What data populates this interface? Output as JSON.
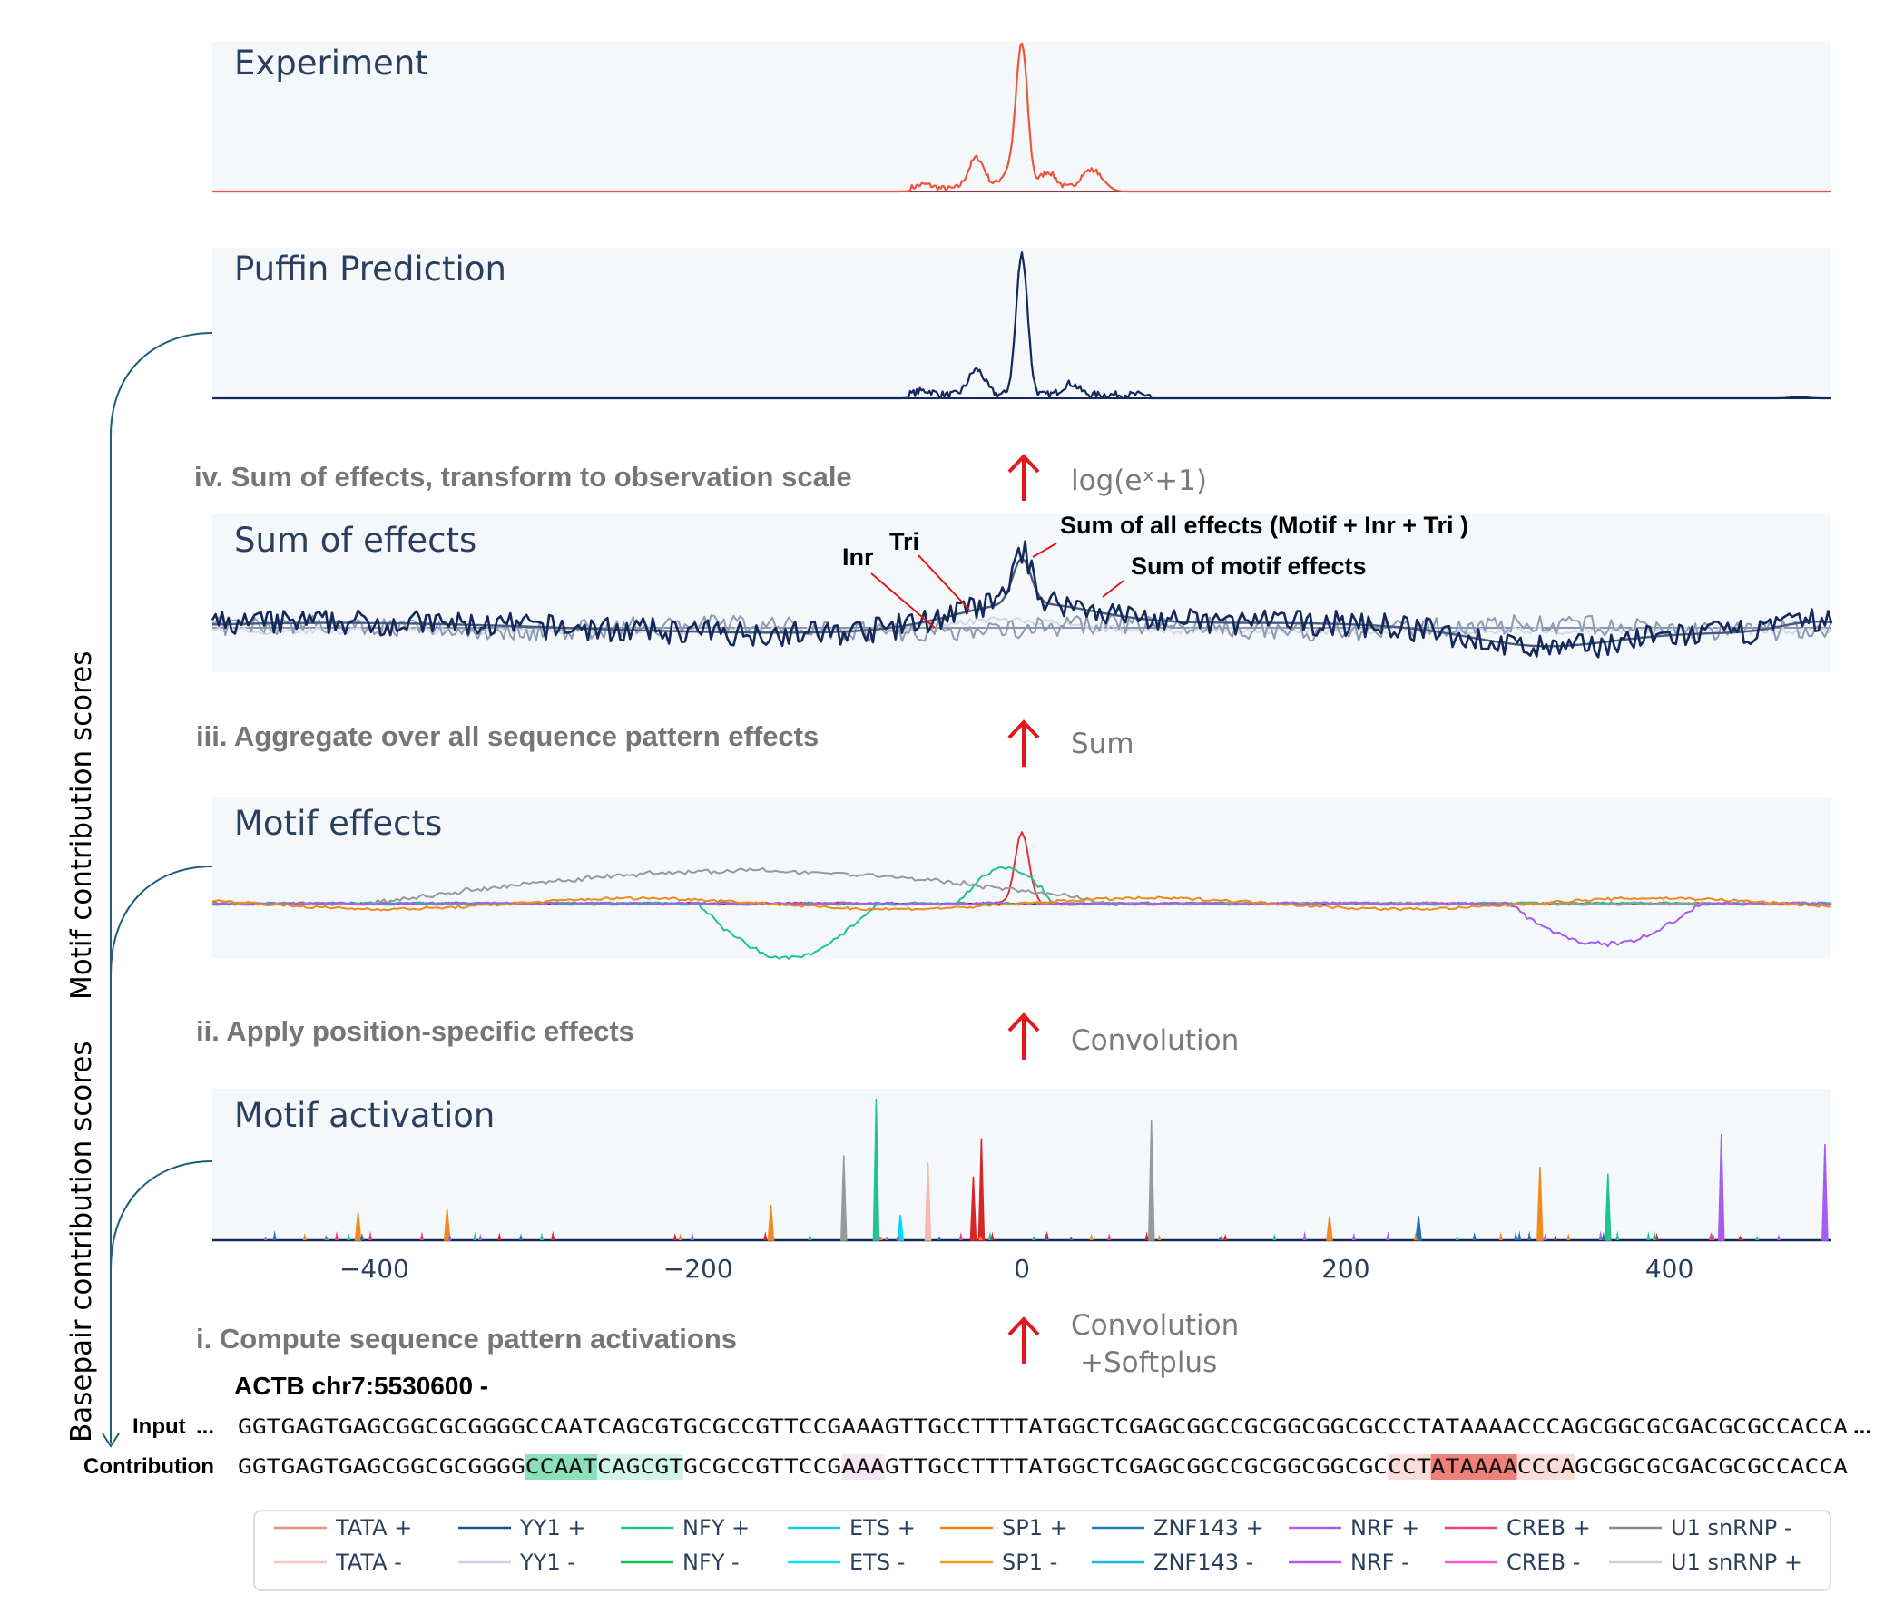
{
  "chart_data": [
    {
      "type": "line",
      "title": "Experiment",
      "xlim": [
        -500,
        500
      ],
      "x_ticks": [],
      "series": [
        {
          "color": "#ef553b",
          "peaks": [
            [
              0,
              100
            ],
            [
              -28,
              22
            ],
            [
              -60,
              3
            ],
            [
              40,
              10
            ],
            [
              48,
              8
            ],
            [
              16,
              12
            ],
            [
              -8,
              12
            ]
          ]
        }
      ]
    },
    {
      "type": "line",
      "title": "Puffin Prediction",
      "xlim": [
        -500,
        500
      ],
      "x_ticks": [],
      "series": [
        {
          "color": "#14295a",
          "peaks": [
            [
              0,
              100
            ],
            [
              -28,
              18
            ],
            [
              30,
              8
            ],
            [
              -60,
              3
            ],
            [
              480,
              1
            ]
          ]
        }
      ]
    },
    {
      "type": "line",
      "title": "Sum of effects",
      "xlim": [
        -500,
        500
      ],
      "x_ticks": [],
      "annotations": [
        "Sum of all effects (Motif + Inr + Tri )",
        "Sum of motif effects",
        "Inr",
        "Tri"
      ],
      "series": [
        {
          "label": "Sum of all effects",
          "color": "#14295a"
        },
        {
          "label": "Sum of motif effects",
          "color": "#4a5a7c"
        },
        {
          "label": "Inr",
          "color": "#8e9ab4"
        },
        {
          "label": "Tri",
          "color": "#d3d8e6"
        }
      ]
    },
    {
      "type": "line",
      "title": "Motif effects",
      "xlim": [
        -500,
        500
      ],
      "x_ticks": [],
      "series": [
        {
          "name": "TATA +",
          "color": "#e5303a",
          "peaks": [
            [
              0,
              80
            ]
          ]
        },
        {
          "name": "NFY +",
          "color": "#1fc48e",
          "segment": [
            -40,
            20,
            45
          ]
        },
        {
          "name": "NFY -",
          "color": "#1fc48e",
          "segment": [
            -200,
            -90,
            -60
          ]
        },
        {
          "name": "U1 snRNP -",
          "color": "#999999",
          "segment": [
            -400,
            60,
            40
          ]
        },
        {
          "name": "NRF -",
          "color": "#a65cf0",
          "segment": [
            300,
            420,
            -45
          ]
        },
        {
          "name": "SP1 +",
          "color": "#f18a1c"
        }
      ]
    },
    {
      "type": "bar",
      "title": "Motif activation",
      "xlim": [
        -500,
        500
      ],
      "x_ticks": [
        -400,
        -200,
        0,
        200,
        400
      ],
      "spikes": [
        [
          -90,
          100,
          "#1fc48e"
        ],
        [
          -110,
          60,
          "#999999"
        ],
        [
          80,
          85,
          "#999999"
        ],
        [
          -25,
          72,
          "#d62728"
        ],
        [
          -58,
          55,
          "#f4b9b2"
        ],
        [
          -155,
          25,
          "#f18a1c"
        ],
        [
          320,
          52,
          "#f18a1c"
        ],
        [
          362,
          47,
          "#1fc48e"
        ],
        [
          432,
          75,
          "#a65cf0"
        ],
        [
          496,
          68,
          "#a65cf0"
        ],
        [
          -30,
          45,
          "#d62728"
        ],
        [
          -410,
          20,
          "#f18a1c"
        ],
        [
          -355,
          22,
          "#f18a1c"
        ],
        [
          -75,
          18,
          "#00d9f2"
        ],
        [
          190,
          17,
          "#f18a1c"
        ],
        [
          245,
          17,
          "#1f6fb4"
        ]
      ]
    }
  ],
  "steps": {
    "iv": "iv. Sum of effects, transform to observation scale",
    "iii": "iii. Aggregate over all sequence pattern effects",
    "ii": "ii.  Apply position-specific effects",
    "i": "i.  Compute sequence pattern activations"
  },
  "ops": {
    "iv": "log(eˣ+1)",
    "iii": "Sum",
    "ii": "Convolution",
    "i_1": "Convolution",
    "i_2": "+Softplus"
  },
  "side_labels": {
    "motif": "Motif contribution scores",
    "basepair": "Basepair contribution scores"
  },
  "sequence": {
    "gene": "ACTB chr7:5530600 -",
    "input_label": "Input",
    "input_dots": "...",
    "contribution_label": "Contribution",
    "seq": "GGTGAGTGAGCGGCGCGGGGCCAATCAGCGTGCGCCGTTCCGAAAGTTGCCTTTTATGGCTCGAGCGGCCGCGGCGGCGCCCTATAAAACCCAGCGGCGCGACGCGCCACCA",
    "trail_dots": "..."
  },
  "legend": [
    [
      "TATA +",
      "#f28b82"
    ],
    [
      "TATA -",
      "#f9c8c0"
    ],
    [
      "YY1 +",
      "#1a4f8f"
    ],
    [
      "YY1 -",
      "#c7d3e6"
    ],
    [
      "NFY +",
      "#21c08b"
    ],
    [
      "NFY -",
      "#0fc050"
    ],
    [
      "ETS +",
      "#1ec8e3"
    ],
    [
      "ETS -",
      "#12e0f2"
    ],
    [
      "SP1 +",
      "#ef7d1a"
    ],
    [
      "SP1 -",
      "#f59a1c"
    ],
    [
      "ZNF143 +",
      "#1a7fb0"
    ],
    [
      "ZNF143 -",
      "#18b6d8"
    ],
    [
      "NRF +",
      "#a55ff0"
    ],
    [
      "NRF -",
      "#b156f5"
    ],
    [
      "CREB +",
      "#ee3f7a"
    ],
    [
      "CREB -",
      "#f35cc0"
    ],
    [
      "U1 snRNP -",
      "#8a8a8a"
    ],
    [
      "U1 snRNP +",
      "#cfcfcf"
    ]
  ],
  "colors": {
    "panel_bg": "#f4f8fb",
    "arrow": "#e3181b",
    "bracket": "#1d5f7a"
  }
}
